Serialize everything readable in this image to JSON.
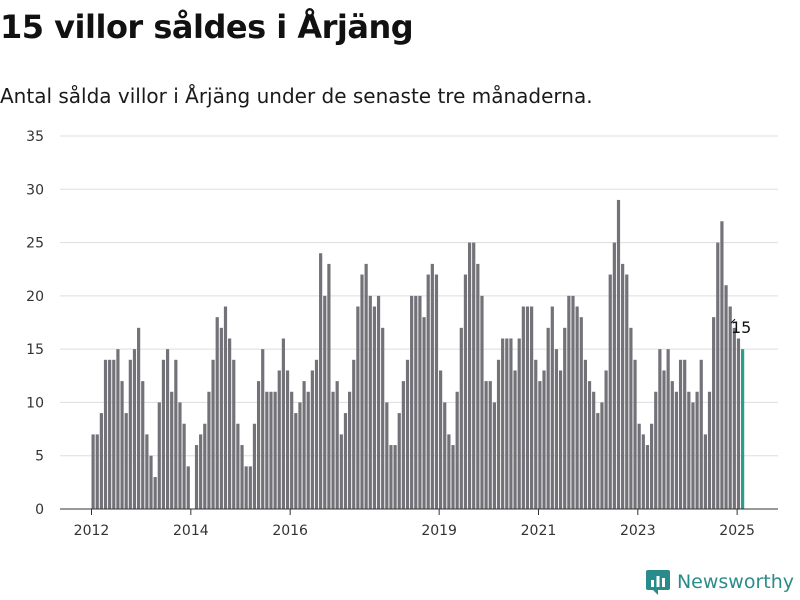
{
  "header": {
    "title": "15 villor såldes i Årjäng",
    "subtitle": "Antal sålda villor i Årjäng under de senaste tre månaderna."
  },
  "brand": {
    "name": "Newsworthy",
    "icon": "newsworthy-logo-icon",
    "color": "#2a8c8a"
  },
  "colors": {
    "bar": "#737278",
    "highlight": "#2a9d8f",
    "grid": "#dddddd"
  },
  "chart_data": {
    "type": "bar",
    "title": "15 villor såldes i Årjäng",
    "subtitle": "Antal sålda villor i Årjäng under de senaste tre månaderna.",
    "xlabel": "",
    "ylabel": "",
    "ylim": [
      0,
      35
    ],
    "yticks": [
      0,
      5,
      10,
      15,
      20,
      25,
      30,
      35
    ],
    "xticks": [
      {
        "label": "2012",
        "x": 2012
      },
      {
        "label": "2014",
        "x": 2014
      },
      {
        "label": "2016",
        "x": 2016
      },
      {
        "label": "2019",
        "x": 2019
      },
      {
        "label": "2021",
        "x": 2021
      },
      {
        "label": "2023",
        "x": 2023
      },
      {
        "label": "2025",
        "x": 2025
      }
    ],
    "grid": true,
    "x_start": 2012,
    "x_step": 0.0833,
    "values": [
      7,
      7,
      9,
      14,
      14,
      14,
      15,
      12,
      9,
      14,
      15,
      17,
      12,
      7,
      5,
      3,
      10,
      14,
      15,
      11,
      14,
      10,
      8,
      4,
      0,
      6,
      7,
      8,
      11,
      14,
      18,
      17,
      19,
      16,
      14,
      8,
      6,
      4,
      4,
      8,
      12,
      15,
      11,
      11,
      11,
      13,
      16,
      13,
      11,
      9,
      10,
      12,
      11,
      13,
      14,
      24,
      20,
      23,
      11,
      12,
      7,
      9,
      11,
      14,
      19,
      22,
      23,
      20,
      19,
      20,
      17,
      10,
      6,
      6,
      9,
      12,
      14,
      20,
      20,
      20,
      18,
      22,
      23,
      22,
      13,
      10,
      7,
      6,
      11,
      17,
      22,
      25,
      25,
      23,
      20,
      12,
      12,
      10,
      14,
      16,
      16,
      16,
      13,
      16,
      19,
      19,
      19,
      14,
      12,
      13,
      17,
      19,
      15,
      13,
      17,
      20,
      20,
      19,
      18,
      14,
      12,
      11,
      9,
      10,
      13,
      22,
      25,
      29,
      23,
      22,
      17,
      14,
      8,
      7,
      6,
      8,
      11,
      15,
      13,
      15,
      12,
      11,
      14,
      14,
      11,
      10,
      11,
      14,
      7,
      11,
      18,
      25,
      27,
      21,
      19,
      17,
      16,
      15
    ],
    "highlight_last": true,
    "annotation": {
      "label": "15",
      "value": 15
    }
  }
}
